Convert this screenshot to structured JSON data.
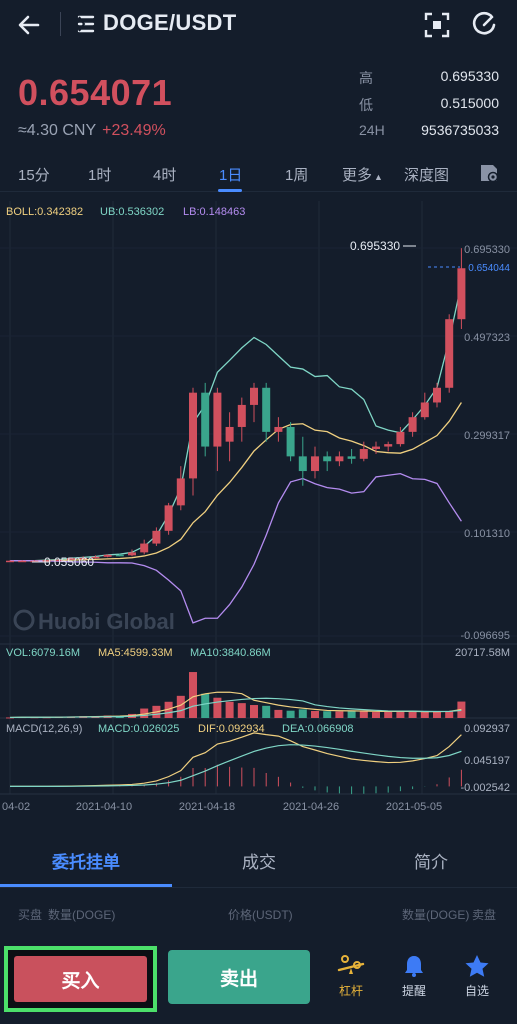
{
  "header": {
    "pair": "DOGE/USDT"
  },
  "ticker": {
    "price": "0.654071",
    "cny": "≈4.30 CNY",
    "change": "+23.49%",
    "high_label": "高",
    "high_value": "0.695330",
    "low_label": "低",
    "low_value": "0.515000",
    "vol_label": "24H",
    "vol_value": "9536735033"
  },
  "intervals": [
    "15分",
    "1时",
    "4时",
    "1日",
    "1周",
    "更多",
    "深度图"
  ],
  "active_interval": "1日",
  "indicators": {
    "boll": "BOLL:0.342382",
    "ub": "UB:0.536302",
    "lb": "LB:0.148463",
    "vol": "VOL:6079.16M",
    "ma5": "MA5:4599.33M",
    "ma10": "MA10:3840.86M",
    "macd_title": "MACD(12,26,9)",
    "macd": "MACD:0.026025",
    "dif": "DIF:0.092934",
    "dea": "DEA:0.066908"
  },
  "price_axis": [
    "0.695330",
    "0.497323",
    "0.299317",
    "0.101310",
    "-0.096695"
  ],
  "current_price_tag": "0.654044",
  "high_marker": "0.695330",
  "low_marker": "0.055060",
  "watermark": "Huobi Global",
  "vol_axis_max": "20717.58M",
  "macd_axis": [
    "0.092937",
    "0.045197",
    "-0.002542"
  ],
  "date_axis": [
    "04-02",
    "2021-04-10",
    "2021-04-18",
    "2021-04-26",
    "2021-05-05"
  ],
  "tabs": [
    "委托挂单",
    "成交",
    "简介"
  ],
  "order_header": {
    "buy_side": "买盘",
    "buy_qty": "数量(DOGE)",
    "price": "价格(USDT)",
    "sell_qty": "数量(DOGE)",
    "sell_side": "卖盘"
  },
  "actions": {
    "buy": "买入",
    "sell": "卖出",
    "leverage": "杠杆",
    "alert": "提醒",
    "favorite": "自选"
  },
  "colors": {
    "up": "#d1505e",
    "down": "#3aa58c",
    "accent": "#4a8cff",
    "boll_mid": "#f0d080",
    "boll_upper": "#7fd6c6",
    "boll_lower": "#b48cf0"
  },
  "chart_data": {
    "type": "candlestick",
    "x": [
      "2021-04-02",
      "2021-04-10",
      "2021-04-18",
      "2021-04-26",
      "2021-05-05"
    ],
    "candles_ohlc": [
      [
        0.056,
        0.058,
        0.055,
        0.057
      ],
      [
        0.057,
        0.058,
        0.056,
        0.057
      ],
      [
        0.057,
        0.058,
        0.056,
        0.057
      ],
      [
        0.057,
        0.058,
        0.056,
        0.058
      ],
      [
        0.058,
        0.06,
        0.057,
        0.059
      ],
      [
        0.059,
        0.062,
        0.058,
        0.062
      ],
      [
        0.062,
        0.066,
        0.06,
        0.063
      ],
      [
        0.063,
        0.068,
        0.061,
        0.065
      ],
      [
        0.065,
        0.07,
        0.064,
        0.069
      ],
      [
        0.069,
        0.072,
        0.066,
        0.068
      ],
      [
        0.068,
        0.08,
        0.066,
        0.074
      ],
      [
        0.074,
        0.1,
        0.07,
        0.092
      ],
      [
        0.092,
        0.125,
        0.087,
        0.118
      ],
      [
        0.118,
        0.175,
        0.11,
        0.17
      ],
      [
        0.17,
        0.25,
        0.16,
        0.225
      ],
      [
        0.225,
        0.41,
        0.19,
        0.4
      ],
      [
        0.4,
        0.42,
        0.27,
        0.29
      ],
      [
        0.29,
        0.41,
        0.24,
        0.4
      ],
      [
        0.3,
        0.36,
        0.26,
        0.33
      ],
      [
        0.33,
        0.39,
        0.3,
        0.375
      ],
      [
        0.375,
        0.42,
        0.34,
        0.41
      ],
      [
        0.41,
        0.42,
        0.3,
        0.32
      ],
      [
        0.32,
        0.35,
        0.3,
        0.33
      ],
      [
        0.33,
        0.34,
        0.26,
        0.27
      ],
      [
        0.27,
        0.31,
        0.21,
        0.24
      ],
      [
        0.24,
        0.29,
        0.225,
        0.27
      ],
      [
        0.27,
        0.28,
        0.24,
        0.26
      ],
      [
        0.26,
        0.28,
        0.25,
        0.27
      ],
      [
        0.27,
        0.285,
        0.255,
        0.265
      ],
      [
        0.265,
        0.3,
        0.26,
        0.285
      ],
      [
        0.285,
        0.3,
        0.275,
        0.29
      ],
      [
        0.29,
        0.3,
        0.28,
        0.295
      ],
      [
        0.295,
        0.33,
        0.29,
        0.32
      ],
      [
        0.32,
        0.36,
        0.31,
        0.35
      ],
      [
        0.35,
        0.4,
        0.345,
        0.38
      ],
      [
        0.38,
        0.42,
        0.37,
        0.41
      ],
      [
        0.41,
        0.56,
        0.4,
        0.55
      ],
      [
        0.55,
        0.695,
        0.53,
        0.654
      ]
    ],
    "volumes_m": [
      200,
      350,
      300,
      280,
      400,
      500,
      700,
      600,
      900,
      800,
      1500,
      3500,
      4500,
      6000,
      8200,
      17000,
      9000,
      7500,
      6000,
      5500,
      4800,
      4500,
      3000,
      2700,
      3200,
      2600,
      2500,
      2400,
      2500,
      2800,
      2200,
      2300,
      2500,
      2400,
      2300,
      2300,
      2600,
      6079
    ]
  }
}
